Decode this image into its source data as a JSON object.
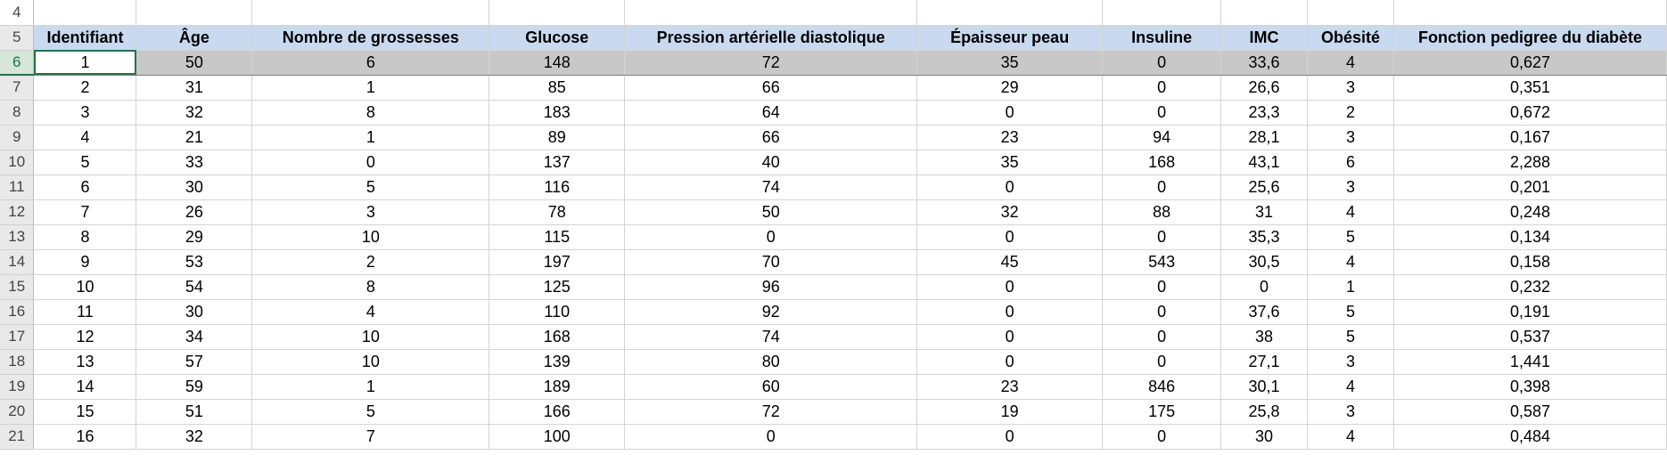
{
  "row_numbers": [
    "4",
    "5",
    "6",
    "7",
    "8",
    "9",
    "10",
    "11",
    "12",
    "13",
    "14",
    "15",
    "16",
    "17",
    "18",
    "19",
    "20",
    "21"
  ],
  "headers": [
    "Identifiant",
    "Âge",
    "Nombre de grossesses",
    "Glucose",
    "Pression artérielle diastolique",
    "Épaisseur peau",
    "Insuline",
    "IMC",
    "Obésité",
    "Fonction pedigree du diabète"
  ],
  "rows": [
    [
      "1",
      "50",
      "6",
      "148",
      "72",
      "35",
      "0",
      "33,6",
      "4",
      "0,627"
    ],
    [
      "2",
      "31",
      "1",
      "85",
      "66",
      "29",
      "0",
      "26,6",
      "3",
      "0,351"
    ],
    [
      "3",
      "32",
      "8",
      "183",
      "64",
      "0",
      "0",
      "23,3",
      "2",
      "0,672"
    ],
    [
      "4",
      "21",
      "1",
      "89",
      "66",
      "23",
      "94",
      "28,1",
      "3",
      "0,167"
    ],
    [
      "5",
      "33",
      "0",
      "137",
      "40",
      "35",
      "168",
      "43,1",
      "6",
      "2,288"
    ],
    [
      "6",
      "30",
      "5",
      "116",
      "74",
      "0",
      "0",
      "25,6",
      "3",
      "0,201"
    ],
    [
      "7",
      "26",
      "3",
      "78",
      "50",
      "32",
      "88",
      "31",
      "4",
      "0,248"
    ],
    [
      "8",
      "29",
      "10",
      "115",
      "0",
      "0",
      "0",
      "35,3",
      "5",
      "0,134"
    ],
    [
      "9",
      "53",
      "2",
      "197",
      "70",
      "45",
      "543",
      "30,5",
      "4",
      "0,158"
    ],
    [
      "10",
      "54",
      "8",
      "125",
      "96",
      "0",
      "0",
      "0",
      "1",
      "0,232"
    ],
    [
      "11",
      "30",
      "4",
      "110",
      "92",
      "0",
      "0",
      "37,6",
      "5",
      "0,191"
    ],
    [
      "12",
      "34",
      "10",
      "168",
      "74",
      "0",
      "0",
      "38",
      "5",
      "0,537"
    ],
    [
      "13",
      "57",
      "10",
      "139",
      "80",
      "0",
      "0",
      "27,1",
      "3",
      "1,441"
    ],
    [
      "14",
      "59",
      "1",
      "189",
      "60",
      "23",
      "846",
      "30,1",
      "4",
      "0,398"
    ],
    [
      "15",
      "51",
      "5",
      "166",
      "72",
      "19",
      "175",
      "25,8",
      "3",
      "0,587"
    ],
    [
      "16",
      "32",
      "7",
      "100",
      "0",
      "0",
      "0",
      "30",
      "4",
      "0,484"
    ]
  ],
  "selected_row_number": "6",
  "colors": {
    "header_fill": "#c9daf0",
    "selection_fill": "#c8c8c8",
    "active_border": "#217346"
  }
}
